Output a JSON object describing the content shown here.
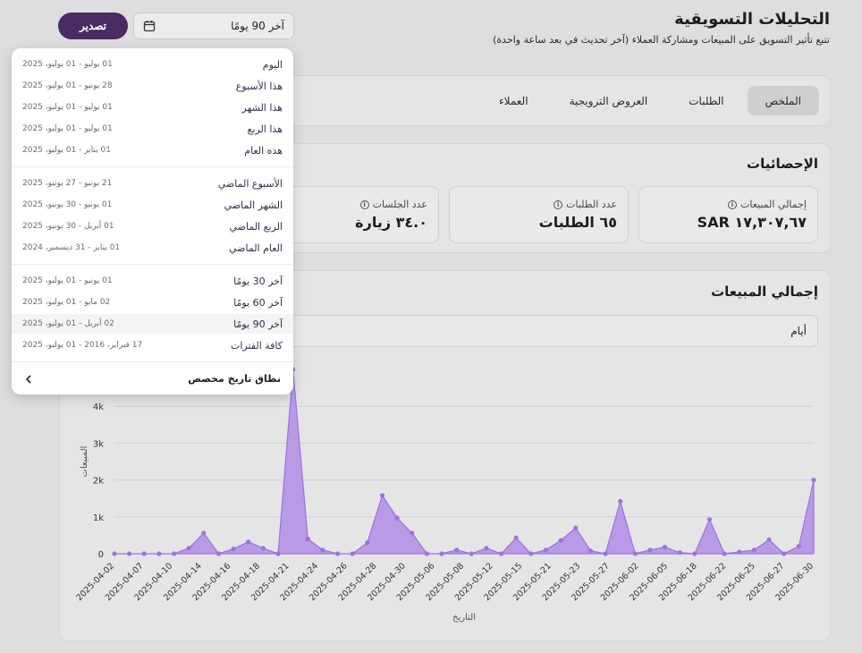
{
  "header": {
    "title": "التحليلات التسويقية",
    "subtitle": "تتبع تأثير التسويق على المبيعات ومشاركة العملاء (آخر تحديث في بعد ساعة واحدة)"
  },
  "toolbar": {
    "export_label": "تصدير",
    "date_range_value": "آخر 90 يومًا"
  },
  "tabs": [
    {
      "label": "الملخص",
      "active": true
    },
    {
      "label": "الطلبات",
      "active": false
    },
    {
      "label": "العروض الترويجية",
      "active": false
    },
    {
      "label": "العملاء",
      "active": false
    }
  ],
  "stats": {
    "title": "الإحصائيات",
    "items": [
      {
        "label": "إجمالي المبيعات",
        "value": "١٧,٣٠٧,٦٧ SAR"
      },
      {
        "label": "عدد الطلبات",
        "value": "٦٥ الطلبات"
      },
      {
        "label": "عدد الجلسات",
        "value": "٣٤.٠ زيارة"
      }
    ]
  },
  "sales": {
    "title": "إجمالي المبيعات",
    "period_value": "أيام"
  },
  "dropdown": {
    "groups": [
      [
        {
          "label": "اليوم",
          "range": "01 يوليو - 01 يوليو، 2025"
        },
        {
          "label": "هذا الأسبوع",
          "range": "28 يونيو - 01 يوليو، 2025"
        },
        {
          "label": "هذا الشهر",
          "range": "01 يوليو - 01 يوليو، 2025"
        },
        {
          "label": "هذا الربع",
          "range": "01 يوليو - 01 يوليو، 2025"
        },
        {
          "label": "هذه العام",
          "range": "01 يناير - 01 يوليو، 2025"
        }
      ],
      [
        {
          "label": "الأسبوع الماضي",
          "range": "21 يونيو - 27 يونيو، 2025"
        },
        {
          "label": "الشهر الماضي",
          "range": "01 يونيو - 30 يونيو، 2025"
        },
        {
          "label": "الربع الماضي",
          "range": "01 أبريل - 30 يونيو، 2025"
        },
        {
          "label": "العام الماضي",
          "range": "01 يناير - 31 ديسمبر، 2024"
        }
      ],
      [
        {
          "label": "آخر 30 يومًا",
          "range": "01 يونيو - 01 يوليو، 2025"
        },
        {
          "label": "آخر 60 يومًا",
          "range": "02 مايو - 01 يوليو، 2025"
        },
        {
          "label": "آخر 90 يومًا",
          "range": "02 أبريل - 01 يوليو، 2025",
          "selected": true
        },
        {
          "label": "كافة الفترات",
          "range": "17 فبراير، 2016 - 01 يوليو، 2025"
        }
      ]
    ],
    "custom_label": "نطاق تاريخ مخصص"
  },
  "colors": {
    "accent": "#4a2b62",
    "chart_fill": "#b89ae6",
    "chart_line": "#9b74dc"
  },
  "chart_data": {
    "type": "area",
    "xlabel": "التاريخ",
    "ylabel": "المبيعات",
    "ylim": [
      0,
      5000
    ],
    "yticks": [
      0,
      1000,
      2000,
      3000,
      4000
    ],
    "ytick_labels": [
      "0",
      "1k",
      "2k",
      "3k",
      "4k"
    ],
    "grid": true,
    "x_tick_labels": [
      "2025-04-02",
      "2025-04-07",
      "2025-04-10",
      "2025-04-14",
      "2025-04-16",
      "2025-04-18",
      "2025-04-21",
      "2025-04-24",
      "2025-04-26",
      "2025-04-28",
      "2025-04-30",
      "2025-05-06",
      "2025-05-08",
      "2025-05-12",
      "2025-05-15",
      "2025-05-21",
      "2025-05-23",
      "2025-05-27",
      "2025-06-02",
      "2025-06-05",
      "2025-06-18",
      "2025-06-22",
      "2025-06-25",
      "2025-06-27",
      "2025-06-30"
    ],
    "values": [
      0,
      0,
      0,
      0,
      0,
      150,
      560,
      0,
      130,
      320,
      150,
      0,
      5000,
      400,
      100,
      0,
      0,
      300,
      1580,
      970,
      560,
      0,
      0,
      100,
      0,
      150,
      0,
      430,
      0,
      100,
      360,
      700,
      80,
      0,
      1420,
      0,
      100,
      180,
      30,
      0,
      930,
      0,
      50,
      100,
      380,
      0,
      200,
      2000
    ]
  }
}
